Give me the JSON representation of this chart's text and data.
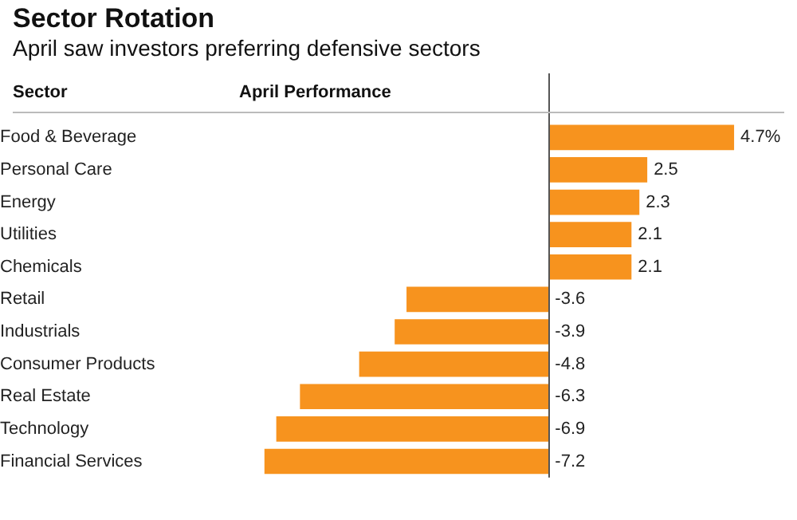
{
  "chart_data": {
    "type": "bar",
    "orientation": "horizontal",
    "title": "Sector Rotation",
    "subtitle": "April saw investors preferring defensive sectors",
    "ylabel": "Sector",
    "xlabel": "April Performance",
    "categories": [
      "Food & Beverage",
      "Personal Care",
      "Energy",
      "Utilities",
      "Chemicals",
      "Retail",
      "Industrials",
      "Consumer Products",
      "Real Estate",
      "Technology",
      "Financial Services"
    ],
    "values": [
      4.7,
      2.5,
      2.3,
      2.1,
      2.1,
      -3.6,
      -3.9,
      -4.8,
      -6.3,
      -6.9,
      -7.2
    ],
    "value_labels": [
      "4.7%",
      "2.5",
      "2.3",
      "2.1",
      "2.1",
      "-3.6",
      "-3.9",
      "-4.8",
      "-6.3",
      "-6.9",
      "-7.2"
    ],
    "color": "#f7931e"
  }
}
